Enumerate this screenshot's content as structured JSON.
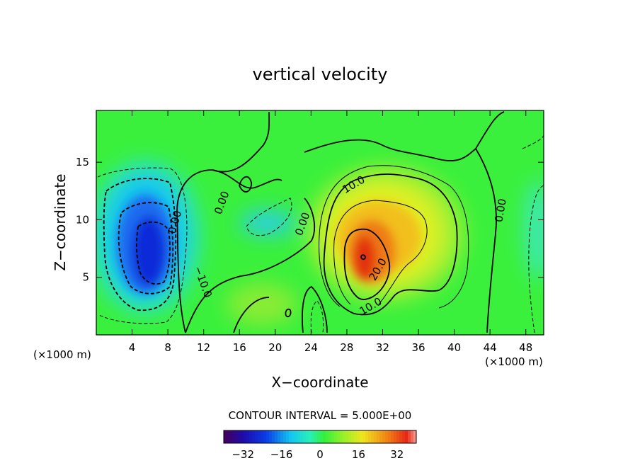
{
  "chart_data": {
    "type": "heatmap",
    "title": "vertical velocity",
    "xlabel": "X−coordinate",
    "ylabel": "Z−coordinate",
    "x_unit_left": "(×1000 m)",
    "x_unit_right": "(×1000 m)",
    "xlim": [
      0,
      50
    ],
    "ylim": [
      0,
      19.5
    ],
    "x_ticks": [
      4,
      8,
      12,
      16,
      20,
      24,
      28,
      32,
      36,
      40,
      44,
      48
    ],
    "y_ticks": [
      5,
      10,
      15
    ],
    "contour_interval_text": "CONTOUR INTERVAL = 5.000E+00",
    "colorbar": {
      "range": [
        -40,
        40
      ],
      "ticks": [
        -32,
        -16,
        0,
        16,
        32
      ],
      "tick_labels": [
        "−32",
        "−16",
        "0",
        "16",
        "32"
      ]
    },
    "contour_labels": [
      {
        "text": "0.00",
        "x": 14.5,
        "z": 11.0
      },
      {
        "text": "0.00",
        "x": 9.0,
        "z": 10.0
      },
      {
        "text": "−10.0",
        "x": 11.0,
        "z": 4.8
      },
      {
        "text": "0.00",
        "x": 23.0,
        "z": 10.0
      },
      {
        "text": "10.0",
        "x": 29.0,
        "z": 13.2
      },
      {
        "text": "20.0",
        "x": 31.5,
        "z": 5.6
      },
      {
        "text": "10.0",
        "x": 30.0,
        "z": 2.5
      },
      {
        "text": "0.00",
        "x": 45.0,
        "z": 11.0
      }
    ],
    "features": [
      {
        "name": "downdraft-core",
        "x": 7.0,
        "z": 8.5,
        "value": -32
      },
      {
        "name": "updraft-core",
        "x": 30.0,
        "z": 7.0,
        "value": 30
      }
    ],
    "colors": {
      "background_field": "#3af03c",
      "strong_negative": "#0a2ad8",
      "negative": "#16c8f0",
      "weak_negative": "#3cf0c8",
      "weak_positive": "#b4f028",
      "positive": "#f0d21c",
      "strong_positive": "#e6320f"
    }
  }
}
